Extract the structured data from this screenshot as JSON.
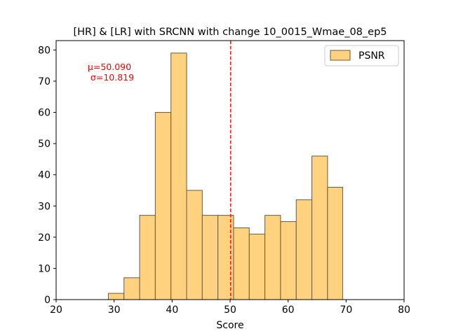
{
  "chart_data": {
    "type": "bar",
    "title": "[HR] & [LR] with SRCNN with change 10_0015_Wmae_08_ep5",
    "xlabel": "Score",
    "ylabel": "",
    "xlim": [
      20,
      80
    ],
    "ylim": [
      0,
      83
    ],
    "x_ticks": [
      20,
      30,
      40,
      50,
      60,
      70,
      80
    ],
    "y_ticks": [
      0,
      10,
      20,
      30,
      40,
      50,
      60,
      70,
      80
    ],
    "grid": false,
    "legend_position": "top-right",
    "series": [
      {
        "name": "PSNR",
        "color": "#FFD280",
        "edge_color": "#6b5a3e",
        "bin_edges": [
          29.0,
          31.7,
          34.4,
          37.1,
          39.8,
          42.5,
          45.2,
          47.9,
          50.6,
          53.3,
          56.0,
          58.7,
          61.4,
          64.1,
          66.8,
          69.4
        ],
        "counts": [
          2,
          7,
          27,
          60,
          79,
          35,
          27,
          27,
          23,
          21,
          27,
          25,
          32,
          46,
          36
        ]
      }
    ],
    "mean_line": {
      "x": 50.09,
      "color": "#ff0000"
    },
    "annotation": {
      "lines": [
        "μ=50.090",
        "σ=10.819"
      ],
      "color": "#ff0000"
    }
  }
}
